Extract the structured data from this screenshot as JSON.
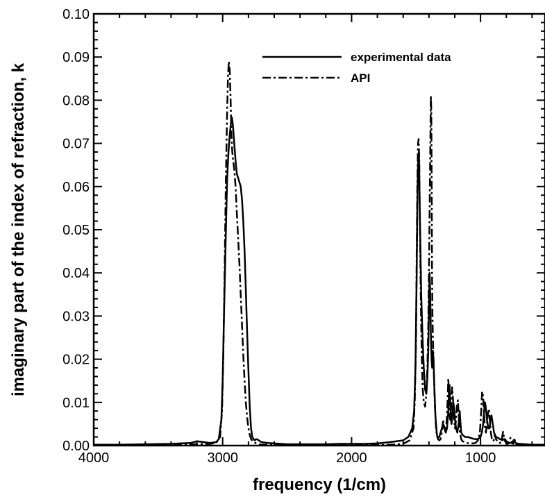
{
  "chart_data": {
    "type": "line",
    "title": "",
    "xlabel": "frequency (1/cm)",
    "ylabel": "imaginary part of the index of refraction, k",
    "xlim": [
      4000,
      500
    ],
    "x_reversed": true,
    "ylim": [
      0.0,
      0.1
    ],
    "grid": false,
    "legend_position": "top-right",
    "x_ticks": [
      {
        "value": 4000,
        "label": "4000"
      },
      {
        "value": 3000,
        "label": "3000"
      },
      {
        "value": 2000,
        "label": "2000"
      },
      {
        "value": 1000,
        "label": "1000"
      }
    ],
    "y_ticks": [
      {
        "value": 0.0,
        "label": "0.00"
      },
      {
        "value": 0.01,
        "label": "0.01"
      },
      {
        "value": 0.02,
        "label": "0.02"
      },
      {
        "value": 0.03,
        "label": "0.03"
      },
      {
        "value": 0.04,
        "label": "0.04"
      },
      {
        "value": 0.05,
        "label": "0.05"
      },
      {
        "value": 0.06,
        "label": "0.06"
      },
      {
        "value": 0.07,
        "label": "0.07"
      },
      {
        "value": 0.08,
        "label": "0.08"
      },
      {
        "value": 0.09,
        "label": "0.09"
      },
      {
        "value": 0.1,
        "label": "0.10"
      }
    ],
    "series": [
      {
        "name": "experimental data",
        "style": "solid",
        "color": "#000000",
        "x": [
          4000,
          3800,
          3600,
          3400,
          3250,
          3200,
          3150,
          3100,
          3050,
          3030,
          3010,
          3000,
          2990,
          2975,
          2965,
          2955,
          2945,
          2935,
          2928,
          2920,
          2910,
          2900,
          2890,
          2880,
          2870,
          2860,
          2850,
          2840,
          2830,
          2820,
          2810,
          2800,
          2790,
          2780,
          2770,
          2760,
          2750,
          2740,
          2730,
          2720,
          2710,
          2700,
          2650,
          2600,
          2550,
          2500,
          2400,
          2300,
          2200,
          2100,
          2010,
          2002,
          1995,
          1990,
          1900,
          1800,
          1700,
          1600,
          1560,
          1530,
          1515,
          1505,
          1495,
          1490,
          1485,
          1478,
          1470,
          1460,
          1450,
          1440,
          1430,
          1420,
          1412,
          1405,
          1400,
          1395,
          1390,
          1385,
          1380,
          1375,
          1370,
          1365,
          1360,
          1355,
          1350,
          1345,
          1340,
          1335,
          1330,
          1320,
          1310,
          1300,
          1290,
          1280,
          1270,
          1260,
          1250,
          1245,
          1240,
          1235,
          1230,
          1225,
          1220,
          1212,
          1205,
          1198,
          1190,
          1180,
          1170,
          1162,
          1155,
          1150,
          1140,
          1120,
          1100,
          1080,
          1060,
          1040,
          1020,
          1000,
          990,
          980,
          972,
          965,
          960,
          950,
          940,
          930,
          922,
          915,
          905,
          895,
          880,
          865,
          850,
          840,
          830,
          820,
          810,
          800,
          790,
          780,
          770,
          760,
          750,
          745,
          740,
          730,
          720,
          700,
          650,
          600,
          550,
          500
        ],
        "y": [
          0.0002,
          0.0002,
          0.0003,
          0.0004,
          0.0006,
          0.001,
          0.0008,
          0.0006,
          0.0008,
          0.0015,
          0.006,
          0.015,
          0.03,
          0.05,
          0.062,
          0.068,
          0.072,
          0.075,
          0.076,
          0.074,
          0.07,
          0.066,
          0.063,
          0.062,
          0.061,
          0.06,
          0.057,
          0.052,
          0.045,
          0.036,
          0.026,
          0.017,
          0.009,
          0.004,
          0.002,
          0.0015,
          0.0012,
          0.0015,
          0.0014,
          0.0012,
          0.001,
          0.0008,
          0.0006,
          0.0005,
          0.0004,
          0.0003,
          0.0003,
          0.0003,
          0.0003,
          0.0004,
          0.0004,
          0.0005,
          0.0004,
          0.0004,
          0.0004,
          0.0005,
          0.0008,
          0.0012,
          0.002,
          0.004,
          0.008,
          0.018,
          0.04,
          0.055,
          0.065,
          0.068,
          0.052,
          0.035,
          0.025,
          0.018,
          0.013,
          0.012,
          0.016,
          0.022,
          0.032,
          0.04,
          0.035,
          0.026,
          0.02,
          0.018,
          0.022,
          0.02,
          0.015,
          0.011,
          0.007,
          0.005,
          0.003,
          0.002,
          0.002,
          0.002,
          0.003,
          0.004,
          0.005,
          0.004,
          0.003,
          0.004,
          0.008,
          0.012,
          0.014,
          0.01,
          0.006,
          0.005,
          0.007,
          0.01,
          0.009,
          0.006,
          0.004,
          0.003,
          0.005,
          0.008,
          0.005,
          0.003,
          0.0025,
          0.002,
          0.002,
          0.0018,
          0.0016,
          0.0015,
          0.0015,
          0.002,
          0.003,
          0.005,
          0.008,
          0.01,
          0.009,
          0.006,
          0.004,
          0.004,
          0.006,
          0.007,
          0.005,
          0.003,
          0.002,
          0.0018,
          0.0015,
          0.0014,
          0.0012,
          0.0015,
          0.0015,
          0.001,
          0.0008,
          0.0007,
          0.0006,
          0.0006,
          0.0008,
          0.0012,
          0.001,
          0.0007,
          0.0005,
          0.0004,
          0.0003,
          0.0002,
          0.0002,
          0.0002
        ]
      },
      {
        "name": "API",
        "style": "dashdot",
        "color": "#000000",
        "x": [
          4000,
          3600,
          3300,
          3200,
          3100,
          3050,
          3020,
          3005,
          2995,
          2985,
          2975,
          2965,
          2958,
          2952,
          2945,
          2938,
          2932,
          2925,
          2918,
          2910,
          2900,
          2890,
          2880,
          2870,
          2860,
          2850,
          2840,
          2830,
          2820,
          2810,
          2800,
          2790,
          2780,
          2760,
          2740,
          2720,
          2700,
          2650,
          2600,
          2500,
          2300,
          2100,
          2000,
          1900,
          1700,
          1600,
          1550,
          1520,
          1510,
          1500,
          1495,
          1490,
          1485,
          1480,
          1475,
          1470,
          1462,
          1455,
          1448,
          1440,
          1430,
          1420,
          1412,
          1405,
          1398,
          1392,
          1388,
          1385,
          1382,
          1379,
          1376,
          1373,
          1370,
          1365,
          1360,
          1355,
          1350,
          1345,
          1340,
          1330,
          1320,
          1310,
          1300,
          1290,
          1280,
          1270,
          1262,
          1255,
          1250,
          1245,
          1240,
          1235,
          1228,
          1220,
          1212,
          1205,
          1198,
          1190,
          1182,
          1175,
          1168,
          1160,
          1150,
          1140,
          1120,
          1100,
          1080,
          1060,
          1040,
          1020,
          1005,
          995,
          988,
          980,
          972,
          965,
          958,
          950,
          942,
          935,
          928,
          920,
          912,
          905,
          898,
          890,
          880,
          870,
          860,
          850,
          840,
          832,
          825,
          818,
          810,
          800,
          790,
          782,
          775,
          768,
          760,
          752,
          745,
          738,
          730,
          720,
          700,
          650,
          600,
          550,
          500
        ],
        "y": [
          0.0001,
          0.0001,
          0.0002,
          0.0003,
          0.0004,
          0.0006,
          0.002,
          0.008,
          0.02,
          0.04,
          0.062,
          0.078,
          0.086,
          0.089,
          0.087,
          0.08,
          0.072,
          0.068,
          0.066,
          0.064,
          0.06,
          0.054,
          0.048,
          0.042,
          0.035,
          0.028,
          0.021,
          0.015,
          0.01,
          0.0065,
          0.004,
          0.0025,
          0.0015,
          0.0008,
          0.0005,
          0.0003,
          0.0002,
          0.0002,
          0.0001,
          0.0001,
          0.0001,
          0.0001,
          0.0001,
          0.0001,
          0.0002,
          0.0004,
          0.0012,
          0.004,
          0.01,
          0.025,
          0.045,
          0.06,
          0.07,
          0.071,
          0.066,
          0.05,
          0.032,
          0.02,
          0.013,
          0.01,
          0.009,
          0.012,
          0.018,
          0.028,
          0.045,
          0.062,
          0.074,
          0.081,
          0.078,
          0.06,
          0.04,
          0.03,
          0.026,
          0.02,
          0.015,
          0.01,
          0.007,
          0.004,
          0.0025,
          0.0015,
          0.0012,
          0.0015,
          0.003,
          0.006,
          0.004,
          0.003,
          0.006,
          0.011,
          0.0155,
          0.012,
          0.007,
          0.006,
          0.009,
          0.0135,
          0.01,
          0.006,
          0.004,
          0.006,
          0.0095,
          0.0105,
          0.006,
          0.003,
          0.0015,
          0.001,
          0.0008,
          0.0006,
          0.0005,
          0.0005,
          0.0006,
          0.0012,
          0.003,
          0.008,
          0.0125,
          0.0115,
          0.007,
          0.004,
          0.003,
          0.005,
          0.0075,
          0.0085,
          0.006,
          0.003,
          0.0015,
          0.001,
          0.0012,
          0.0025,
          0.0015,
          0.001,
          0.0008,
          0.0006,
          0.0008,
          0.002,
          0.0032,
          0.002,
          0.001,
          0.0006,
          0.0004,
          0.0005,
          0.0012,
          0.0018,
          0.001,
          0.0005,
          0.0004,
          0.0018,
          0.0006,
          0.0002,
          0.0001,
          0.0001,
          0.0001,
          0.0001,
          0.0001
        ]
      }
    ]
  }
}
